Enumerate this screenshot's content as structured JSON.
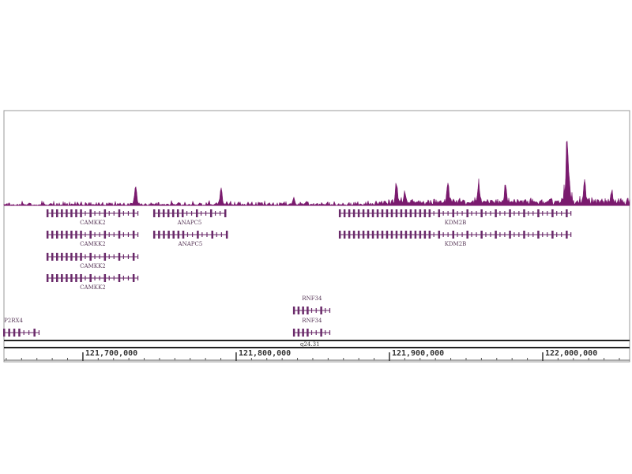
{
  "chart_data": {
    "type": "area",
    "xlim": [
      121648500,
      122056700
    ],
    "ylim": [
      0,
      1
    ],
    "grid": false,
    "colors": {
      "signal": "#7a1a6e",
      "gene": "#6a2a6a",
      "frame": "#888888"
    },
    "signal_peaks": [
      {
        "pos": 121734500,
        "h": 0.25
      },
      {
        "pos": 121790200,
        "h": 0.22
      },
      {
        "pos": 121837600,
        "h": 0.1
      },
      {
        "pos": 121904600,
        "h": 0.3
      },
      {
        "pos": 121910000,
        "h": 0.2
      },
      {
        "pos": 121938100,
        "h": 0.3
      },
      {
        "pos": 121958200,
        "h": 0.3
      },
      {
        "pos": 121975800,
        "h": 0.3
      },
      {
        "pos": 122016000,
        "h": 1.0
      },
      {
        "pos": 122027300,
        "h": 0.3
      },
      {
        "pos": 122045000,
        "h": 0.2
      }
    ],
    "genes": [
      {
        "name": "CAMKK2",
        "start": 121676800,
        "end": 121736100,
        "strand": "-",
        "row": 0
      },
      {
        "name": "CAMKK2",
        "start": 121676800,
        "end": 121736100,
        "strand": "-",
        "row": 1
      },
      {
        "name": "CAMKK2",
        "start": 121676800,
        "end": 121736100,
        "strand": "-",
        "row": 2
      },
      {
        "name": "CAMKK2",
        "start": 121676800,
        "end": 121736100,
        "strand": "-",
        "row": 3
      },
      {
        "name": "ANAPC5",
        "start": 121746400,
        "end": 121792800,
        "strand": "-",
        "row": 0
      },
      {
        "name": "ANAPC5",
        "start": 121746400,
        "end": 121793800,
        "strand": "-",
        "row": 1
      },
      {
        "name": "KDM2B",
        "start": 121867500,
        "end": 122018600,
        "strand": "-",
        "row": 0
      },
      {
        "name": "KDM2B",
        "start": 121867500,
        "end": 122018600,
        "strand": "-",
        "row": 1
      },
      {
        "name": "RNF34",
        "start": 121837600,
        "end": 121861300,
        "strand": "+",
        "row": 4
      },
      {
        "name": "RNF34",
        "start": 121837600,
        "end": 121861300,
        "strand": "+",
        "row": 5
      },
      {
        "name": "P2RX4",
        "start": 121648500,
        "end": 121671600,
        "strand": "+",
        "row": 5
      }
    ],
    "band_label": "q24.31",
    "xticks": [
      {
        "pos": 121700000,
        "label": "121,700,000"
      },
      {
        "pos": 121800000,
        "label": "121,800,000"
      },
      {
        "pos": 121900000,
        "label": "121,900,000"
      },
      {
        "pos": 122000000,
        "label": "122,000,000"
      }
    ]
  }
}
